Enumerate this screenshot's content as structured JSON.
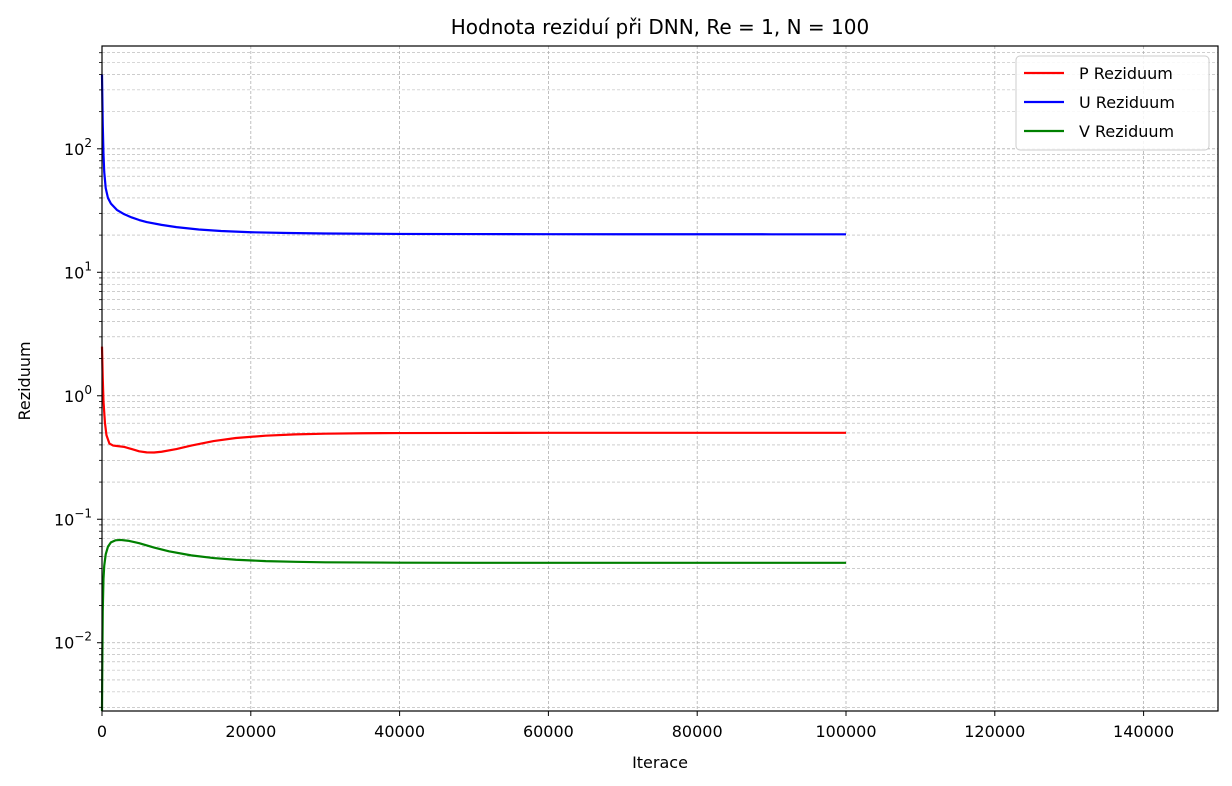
{
  "chart_data": {
    "type": "line",
    "title": "Hodnota reziduí při DNN, Re = 1, N = 100",
    "xlabel": "Iterace",
    "ylabel": "Reziduum",
    "xlim": [
      0,
      150000
    ],
    "ylim": [
      0.0028,
      680
    ],
    "yscale": "log",
    "grid": true,
    "grid_style": "dashed",
    "legend_position": "top-right",
    "x_ticks": [
      0,
      20000,
      40000,
      60000,
      80000,
      100000,
      120000,
      140000
    ],
    "y_ticks": [
      {
        "value": 0.01,
        "base": "10",
        "exp": "−2"
      },
      {
        "value": 0.1,
        "base": "10",
        "exp": "−1"
      },
      {
        "value": 1,
        "base": "10",
        "exp": "0"
      },
      {
        "value": 10,
        "base": "10",
        "exp": "1"
      },
      {
        "value": 100,
        "base": "10",
        "exp": "2"
      }
    ],
    "series": [
      {
        "name": "P Reziduum",
        "color": "#ff0000",
        "x": [
          0,
          100,
          200,
          400,
          600,
          1000,
          1500,
          2000,
          3000,
          4000,
          5000,
          6000,
          7000,
          8000,
          10000,
          12000,
          15000,
          18000,
          22000,
          26000,
          30000,
          35000,
          40000,
          50000,
          60000,
          70000,
          80000,
          90000,
          100000
        ],
        "y": [
          2.5,
          1.4,
          0.9,
          0.6,
          0.48,
          0.41,
          0.395,
          0.392,
          0.385,
          0.37,
          0.355,
          0.348,
          0.347,
          0.352,
          0.37,
          0.395,
          0.43,
          0.455,
          0.475,
          0.487,
          0.493,
          0.497,
          0.499,
          0.5,
          0.501,
          0.501,
          0.501,
          0.501,
          0.501
        ]
      },
      {
        "name": "U Reziduum",
        "color": "#0000ff",
        "x": [
          0,
          100,
          200,
          300,
          500,
          800,
          1200,
          2000,
          3000,
          4000,
          5000,
          6000,
          8000,
          10000,
          13000,
          16000,
          20000,
          25000,
          30000,
          40000,
          50000,
          60000,
          70000,
          80000,
          90000,
          100000
        ],
        "y": [
          400,
          160,
          90,
          65,
          48,
          40,
          36,
          32,
          29.5,
          27.8,
          26.5,
          25.5,
          24.2,
          23.2,
          22.2,
          21.6,
          21.1,
          20.8,
          20.6,
          20.45,
          20.4,
          20.35,
          20.33,
          20.32,
          20.31,
          20.3
        ]
      },
      {
        "name": "V Reziduum",
        "color": "#008000",
        "x": [
          0,
          50,
          100,
          200,
          300,
          500,
          800,
          1200,
          1800,
          2500,
          3500,
          5000,
          7000,
          9000,
          12000,
          15000,
          18000,
          22000,
          26000,
          30000,
          40000,
          50000,
          60000,
          70000,
          80000,
          90000,
          100000
        ],
        "y": [
          0.0028,
          0.008,
          0.018,
          0.033,
          0.042,
          0.052,
          0.06,
          0.065,
          0.0675,
          0.068,
          0.067,
          0.064,
          0.059,
          0.055,
          0.051,
          0.0485,
          0.047,
          0.0458,
          0.0452,
          0.0448,
          0.0445,
          0.0444,
          0.0444,
          0.0444,
          0.0444,
          0.0444,
          0.0444
        ]
      }
    ]
  }
}
